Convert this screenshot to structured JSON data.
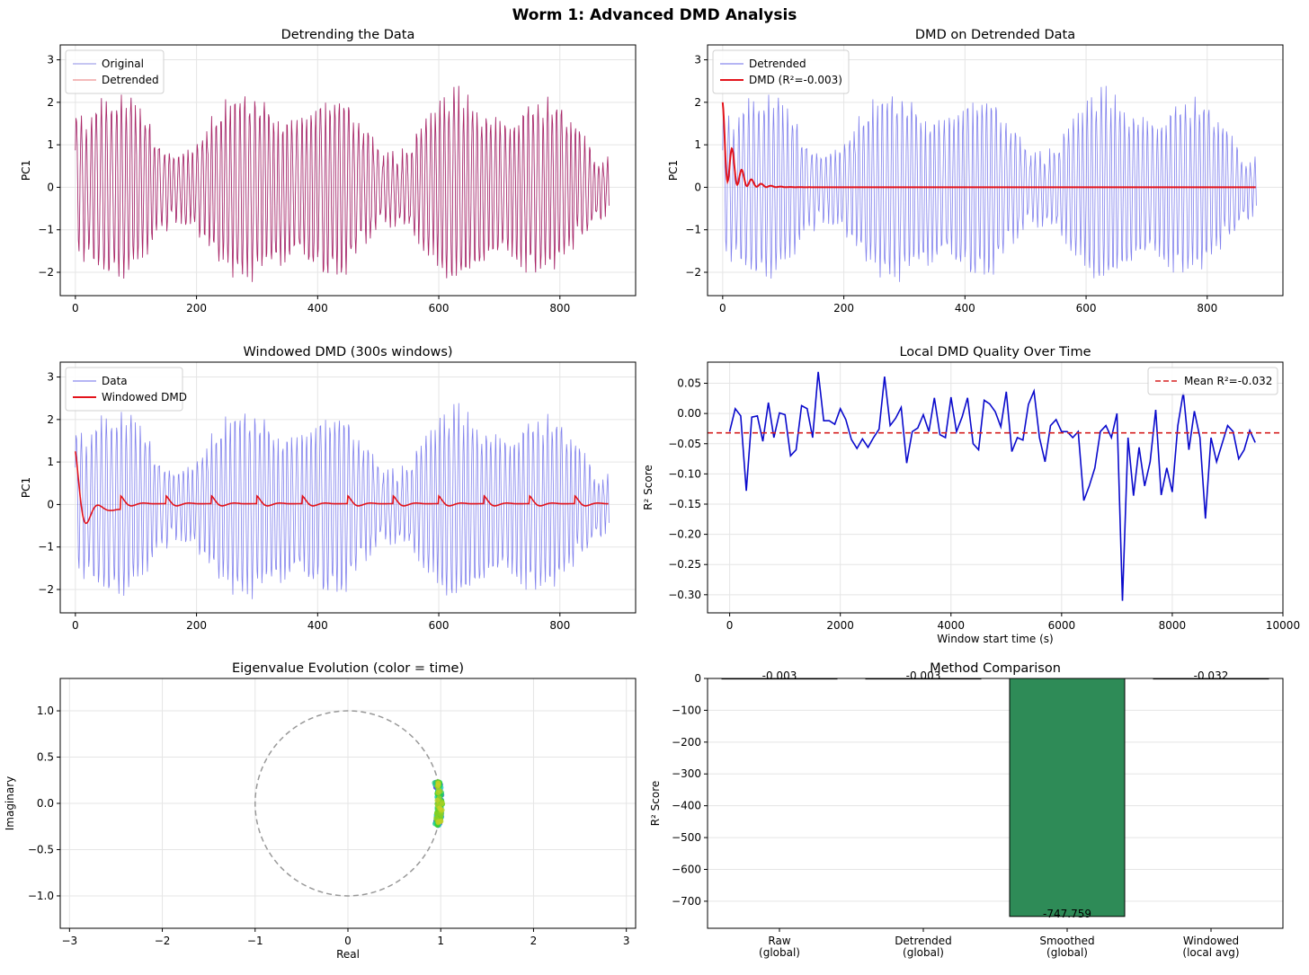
{
  "figure": {
    "suptitle": "Worm 1: Advanced DMD Analysis"
  },
  "chart_data": [
    {
      "type": "line",
      "title": "Detrending the Data",
      "xlabel": "",
      "ylabel": "PC1",
      "xlim": [
        -25,
        925
      ],
      "ylim": [
        -2.55,
        3.35
      ],
      "xticks": [
        0,
        200,
        400,
        600,
        800
      ],
      "yticks": [
        -2,
        -1,
        0,
        1,
        2,
        3
      ],
      "grid": true,
      "legend": "top-left",
      "series": [
        {
          "name": "Original",
          "color": "#8c8ce6",
          "signal": {
            "n": 882,
            "dt": 1,
            "seed": 11,
            "scale": 1.0
          }
        },
        {
          "name": "Detrended",
          "color": "#e87575",
          "signal": {
            "n": 882,
            "dt": 1,
            "seed": 11,
            "scale": 1.0
          },
          "overlap_color": "#b0104a"
        }
      ]
    },
    {
      "type": "line",
      "title": "DMD on Detrended Data",
      "xlabel": "",
      "ylabel": "PC1",
      "xlim": [
        -25,
        925
      ],
      "ylim": [
        -2.55,
        3.35
      ],
      "xticks": [
        0,
        200,
        400,
        600,
        800
      ],
      "yticks": [
        -2,
        -1,
        0,
        1,
        2,
        3
      ],
      "grid": true,
      "legend": "top-left",
      "series": [
        {
          "name": "Detrended",
          "color": "#6b6bea",
          "signal": {
            "n": 882,
            "dt": 1,
            "seed": 11,
            "scale": 1.0
          }
        },
        {
          "name": "DMD (R²=-0.003)",
          "color": "#e3141c",
          "decay": {
            "x0": 0,
            "x1": 880,
            "amp": 2.0,
            "tau": 20,
            "period": 16,
            "end": 0.0
          }
        }
      ]
    },
    {
      "type": "line",
      "title": "Windowed DMD (300s windows)",
      "xlabel": "",
      "ylabel": "PC1",
      "xlim": [
        -25,
        925
      ],
      "ylim": [
        -2.55,
        3.35
      ],
      "xticks": [
        0,
        200,
        400,
        600,
        800
      ],
      "yticks": [
        -2,
        -1,
        0,
        1,
        2,
        3
      ],
      "grid": true,
      "legend": "top-left",
      "series": [
        {
          "name": "Data",
          "color": "#6b6bea",
          "signal": {
            "n": 882,
            "dt": 1,
            "seed": 11,
            "scale": 1.0
          }
        },
        {
          "name": "Windowed DMD",
          "color": "#e3141c",
          "windowed": {
            "x0": 0,
            "x1": 880,
            "amp": 1.25,
            "tau": 15,
            "period": 40
          }
        }
      ]
    },
    {
      "type": "line",
      "title": "Local DMD Quality Over Time",
      "xlabel": "Window start time (s)",
      "ylabel": "R² Score",
      "xlim": [
        -400,
        10000
      ],
      "ylim": [
        -0.33,
        0.085
      ],
      "xticks": [
        0,
        2000,
        4000,
        6000,
        8000,
        10000
      ],
      "yticks": [
        -0.3,
        -0.25,
        -0.2,
        -0.15,
        -0.1,
        -0.05,
        0.0,
        0.05
      ],
      "grid": true,
      "legend": "top-right",
      "mean_line": {
        "name": "Mean R²=-0.032",
        "value": -0.032,
        "color": "#d62020"
      },
      "series": [
        {
          "name": "",
          "color": "#0a0acc",
          "x": [
            0,
            100,
            200,
            300,
            400,
            500,
            600,
            700,
            800,
            900,
            1000,
            1100,
            1200,
            1300,
            1400,
            1500,
            1600,
            1700,
            1800,
            1900,
            2000,
            2100,
            2200,
            2300,
            2400,
            2500,
            2600,
            2700,
            2800,
            2900,
            3000,
            3100,
            3200,
            3300,
            3400,
            3500,
            3600,
            3700,
            3800,
            3900,
            4000,
            4100,
            4200,
            4300,
            4400,
            4500,
            4600,
            4700,
            4800,
            4900,
            5000,
            5100,
            5200,
            5300,
            5400,
            5500,
            5600,
            5700,
            5800,
            5900,
            6000,
            6100,
            6200,
            6300,
            6400,
            6500,
            6600,
            6700,
            6800,
            6900,
            7000,
            7100,
            7200,
            7300,
            7400,
            7500,
            7600,
            7700,
            7800,
            7900,
            8000,
            8100,
            8200,
            8300,
            8400,
            8500,
            8600,
            8700,
            8800,
            8900,
            9000,
            9100,
            9200,
            9300,
            9400,
            9500
          ],
          "values": [
            -0.03,
            0.008,
            -0.004,
            -0.128,
            -0.006,
            -0.004,
            -0.046,
            0.018,
            -0.04,
            0.001,
            -0.002,
            -0.07,
            -0.06,
            0.013,
            0.008,
            -0.04,
            0.069,
            -0.012,
            -0.012,
            -0.018,
            0.008,
            -0.01,
            -0.043,
            -0.058,
            -0.042,
            -0.056,
            -0.04,
            -0.026,
            0.061,
            -0.02,
            -0.008,
            0.01,
            -0.082,
            -0.03,
            -0.024,
            -0.002,
            -0.03,
            0.026,
            -0.035,
            -0.04,
            0.027,
            -0.03,
            -0.006,
            0.026,
            -0.05,
            -0.06,
            0.022,
            0.016,
            0.003,
            -0.022,
            0.036,
            -0.063,
            -0.04,
            -0.044,
            0.015,
            0.037,
            -0.04,
            -0.08,
            -0.02,
            -0.01,
            -0.03,
            -0.03,
            -0.04,
            -0.03,
            -0.144,
            -0.12,
            -0.09,
            -0.03,
            -0.02,
            -0.04,
            0.0,
            -0.31,
            -0.04,
            -0.136,
            -0.056,
            -0.12,
            -0.08,
            0.006,
            -0.135,
            -0.09,
            -0.13,
            -0.02,
            0.035,
            -0.06,
            0.004,
            -0.04,
            -0.174,
            -0.04,
            -0.08,
            -0.05,
            -0.02,
            -0.03,
            -0.075,
            -0.06,
            -0.028,
            -0.048
          ],
          "note_only_x_dense": true
        }
      ]
    },
    {
      "type": "scatter",
      "title": "Eigenvalue Evolution (color = time)",
      "xlabel": "Real",
      "ylabel": "Imaginary",
      "xlim": [
        -3.1,
        3.1
      ],
      "ylim": [
        -1.35,
        1.35
      ],
      "xticks": [
        -3,
        -2,
        -1,
        0,
        1,
        2,
        3
      ],
      "yticks": [
        -1.0,
        -0.5,
        0.0,
        0.5,
        1.0
      ],
      "ytick_labels": [
        "−1.0",
        "−0.5",
        "0.0",
        "0.5",
        "1.0"
      ],
      "grid": true,
      "unit_circle": true,
      "points": {
        "radius_min": 0.96,
        "radius_max": 1.02,
        "angle_max": 0.24,
        "count": 160
      }
    },
    {
      "type": "bar",
      "title": "Method Comparison",
      "xlabel": "",
      "ylabel": "R² Score",
      "ylim": [
        -785,
        0
      ],
      "yticks": [
        0,
        -100,
        -200,
        -300,
        -400,
        -500,
        -600,
        -700
      ],
      "grid": true,
      "categories": [
        "Raw\n(global)",
        "Detrended\n(global)",
        "Smoothed\n(global)",
        "Windowed\n(local avg)"
      ],
      "values": [
        -0.003,
        -0.003,
        -747.759,
        -0.032
      ],
      "value_labels": [
        "-0.003",
        "-0.003",
        "-747.759",
        "-0.032"
      ],
      "bar_color": "#2e8b57"
    }
  ]
}
